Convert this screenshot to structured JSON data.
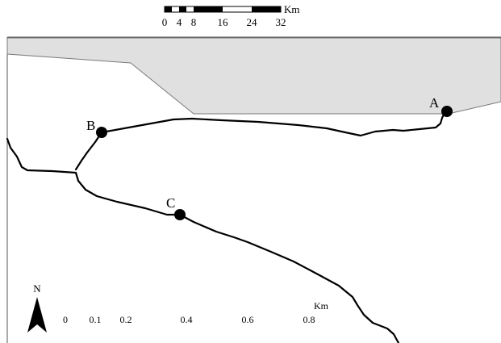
{
  "top_scale_bar": {
    "unit": "Km",
    "ticks": [
      "0",
      "4",
      "8",
      "16",
      "24",
      "32"
    ]
  },
  "bottom_scale_bar": {
    "unit": "Km",
    "ticks": [
      "0",
      "0.1",
      "0.2",
      "0.4",
      "0.6",
      "0.8"
    ]
  },
  "north_arrow": {
    "label": "N"
  },
  "sites": [
    {
      "id": "A",
      "label": "A"
    },
    {
      "id": "B",
      "label": "B"
    },
    {
      "id": "C",
      "label": "C"
    }
  ],
  "colors": {
    "water": "#e0e0e0",
    "outline": "#7a7a7a",
    "road": "#000000",
    "point": "#000000"
  }
}
